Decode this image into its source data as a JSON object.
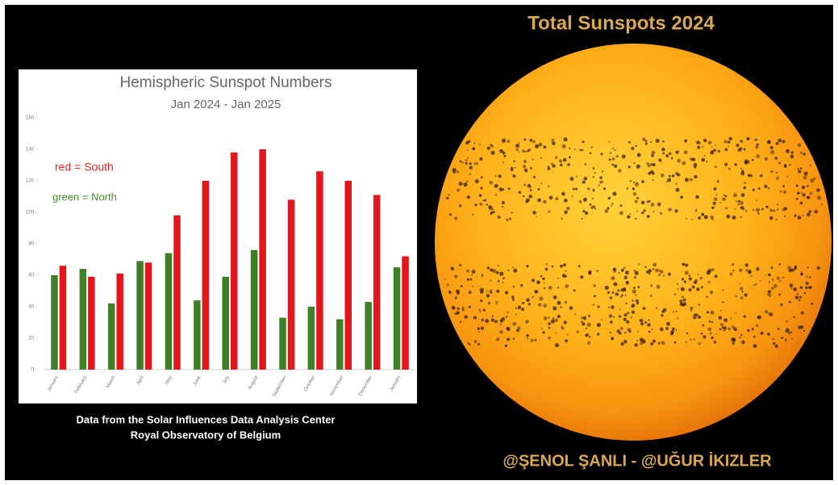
{
  "page": {
    "title": "Total Sunspots 2024",
    "source_lines": [
      "Data from the Solar Influences Data Analysis Center",
      "Royal Observatory of Belgium"
    ],
    "credit": "@ŞENOL ŞANLI - @UĞUR İKIZLER"
  },
  "chart_data": {
    "type": "bar",
    "title": "Hemispheric Sunspot Numbers",
    "subtitle": "Jan  2024 - Jan 2025",
    "annotations": [
      {
        "text": "red = South",
        "color": "#e0262a"
      },
      {
        "text": "green = North",
        "color": "#4a8a2e"
      }
    ],
    "categories": [
      "January",
      "February",
      "March",
      "April",
      "May",
      "June",
      "July",
      "August",
      "September",
      "October",
      "November",
      "December",
      "January"
    ],
    "series": [
      {
        "color": "#3f7f26",
        "values": [
          60,
          64,
          42,
          69,
          74,
          44,
          59,
          76,
          33,
          40,
          32,
          43,
          65
        ]
      },
      {
        "color": "#e3161b",
        "values": [
          66,
          59,
          61,
          68,
          98,
          120,
          138,
          140,
          108,
          126,
          120,
          111,
          72
        ]
      }
    ],
    "ylim": [
      0,
      160
    ],
    "yticks": [
      0,
      20,
      40,
      60,
      80,
      100,
      120,
      140,
      160
    ],
    "grid": false
  }
}
